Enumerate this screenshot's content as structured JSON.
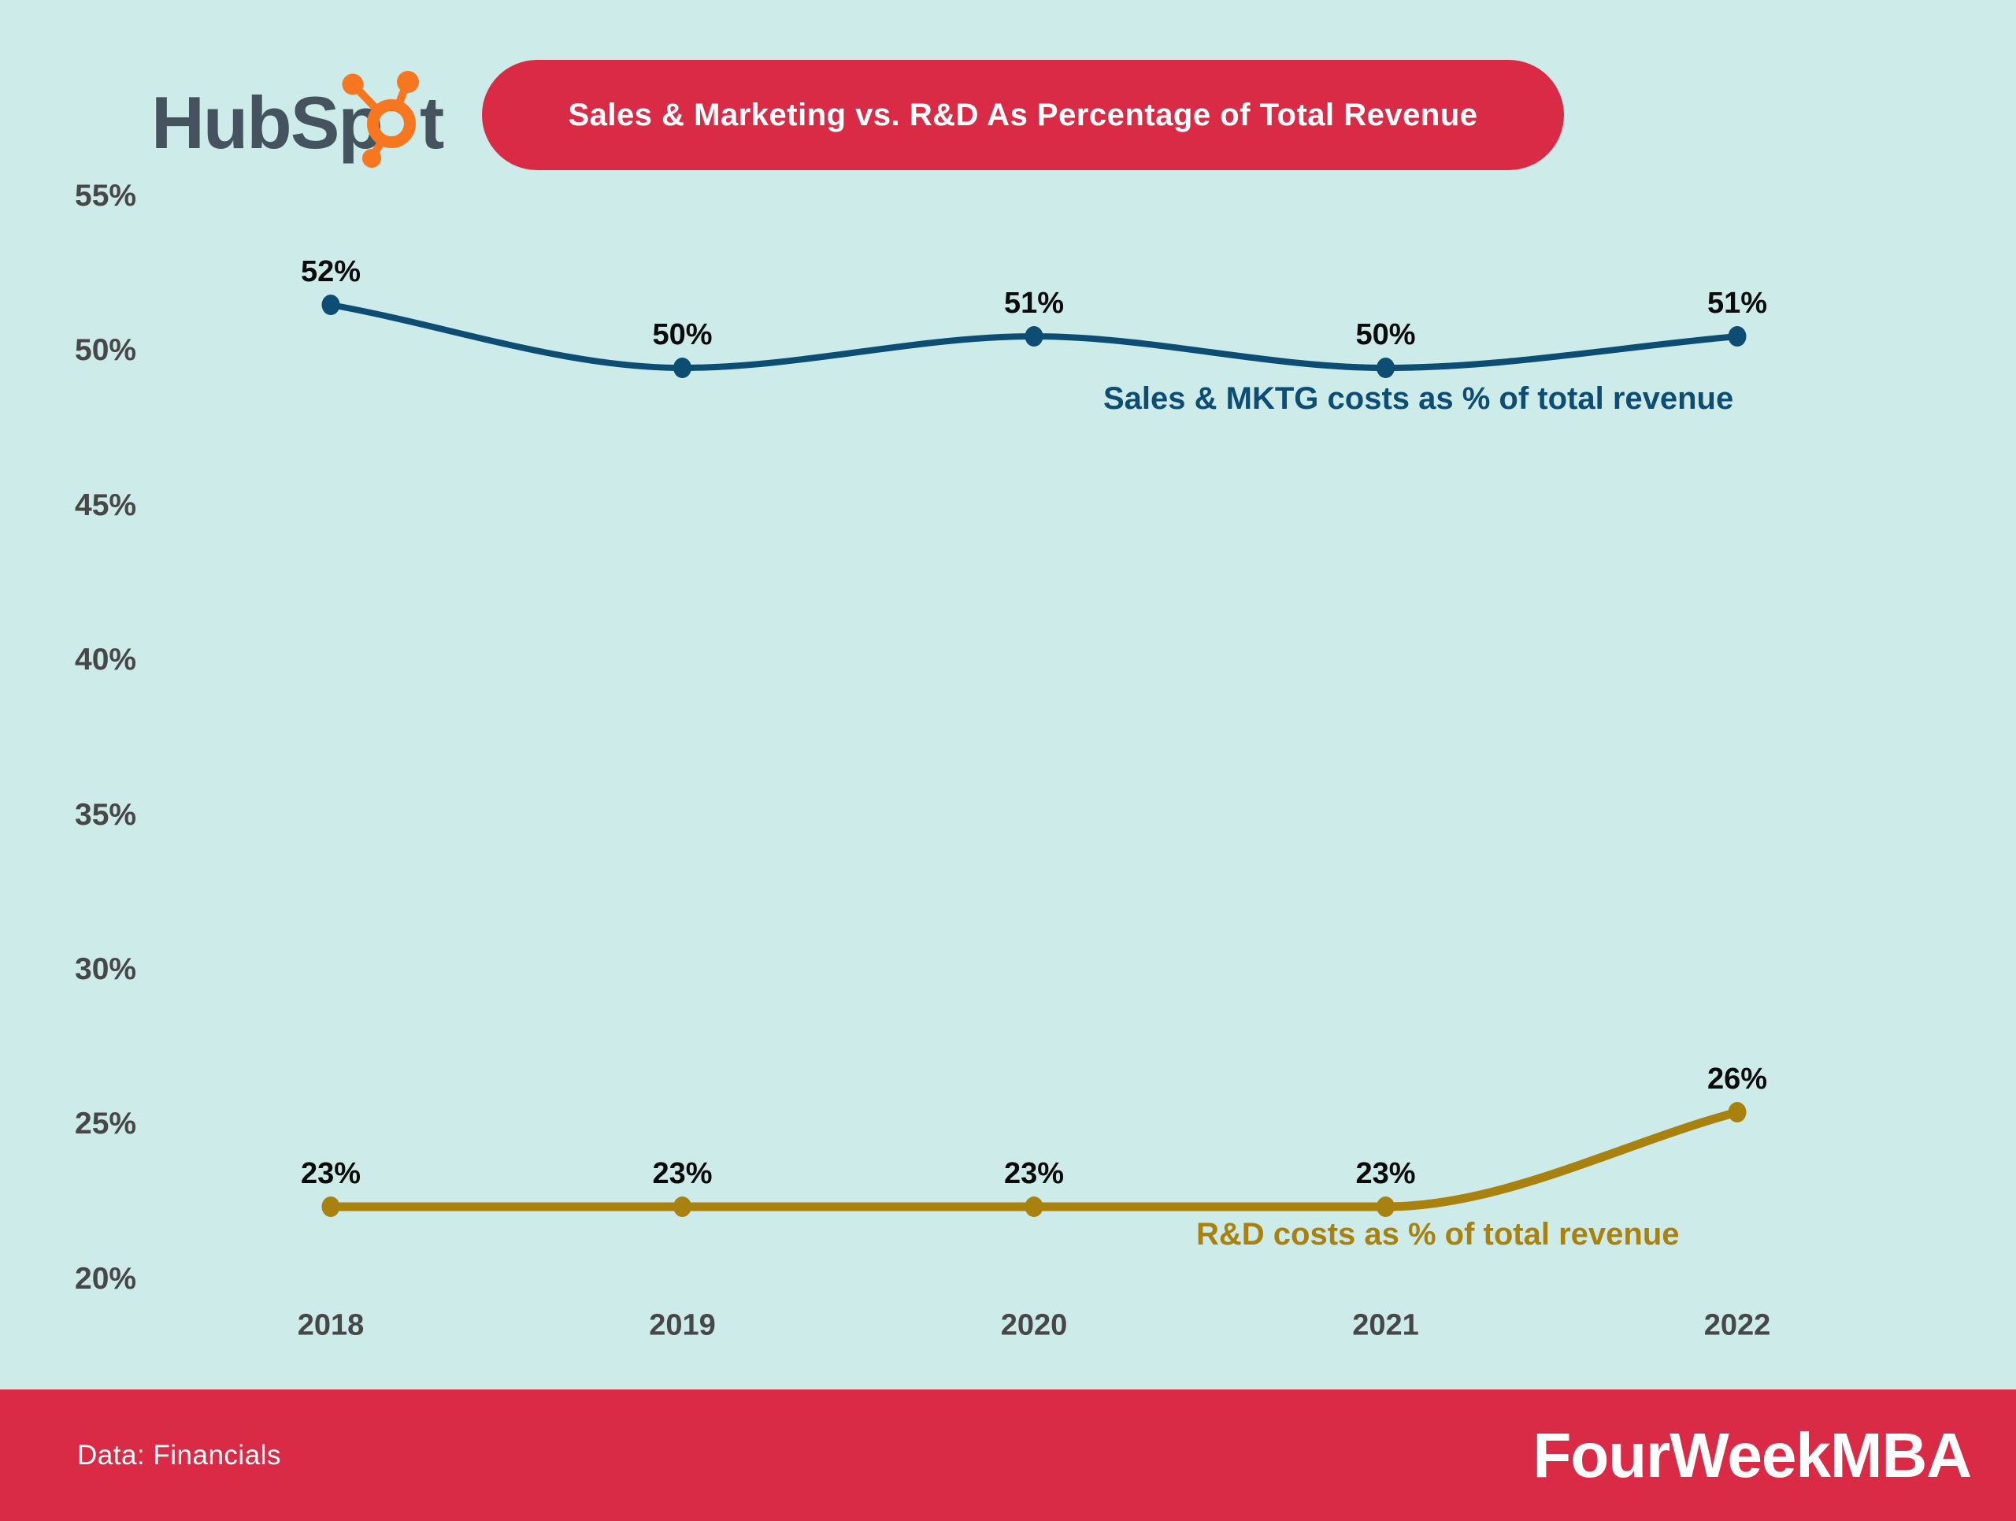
{
  "header": {
    "logo": {
      "full_name": "HubSpot",
      "text_before": "HubSp",
      "text_after": "t"
    },
    "title": "Sales & Marketing vs. R&D As Percentage of Total Revenue"
  },
  "chart_data": {
    "type": "line",
    "x": [
      2018,
      2019,
      2020,
      2021,
      2022
    ],
    "x_labels": [
      "2018",
      "2019",
      "2020",
      "2021",
      "2022"
    ],
    "series": [
      {
        "name": "Sales & MKTG costs as % of total revenue",
        "values": [
          52,
          50,
          51,
          50,
          51
        ],
        "unit": "%",
        "color": "#0d4c73"
      },
      {
        "name": "R&D costs as % of total revenue",
        "values": [
          23,
          23,
          23,
          23,
          26
        ],
        "unit": "%",
        "color": "#a8810e"
      }
    ],
    "y_ticks": [
      "55%",
      "50%",
      "45%",
      "40%",
      "35%",
      "30%",
      "25%",
      "20%"
    ],
    "ylim": [
      20,
      55
    ],
    "xlabel": "",
    "ylabel": "",
    "grid": false,
    "data_labels": true,
    "legend_position": "inline-right-of-lines"
  },
  "footer": {
    "source": "Data: Financials",
    "brand": "FourWeekMBA"
  },
  "colors": {
    "background": "#cdebe9",
    "accent_red": "#d92b45",
    "title_text": "#ffffff",
    "tick_text": "#474747",
    "value_label_text": "#0b0b0b",
    "logo_slate": "#45535e",
    "logo_orange": "#f6771f",
    "footer_text": "#ffffff"
  }
}
